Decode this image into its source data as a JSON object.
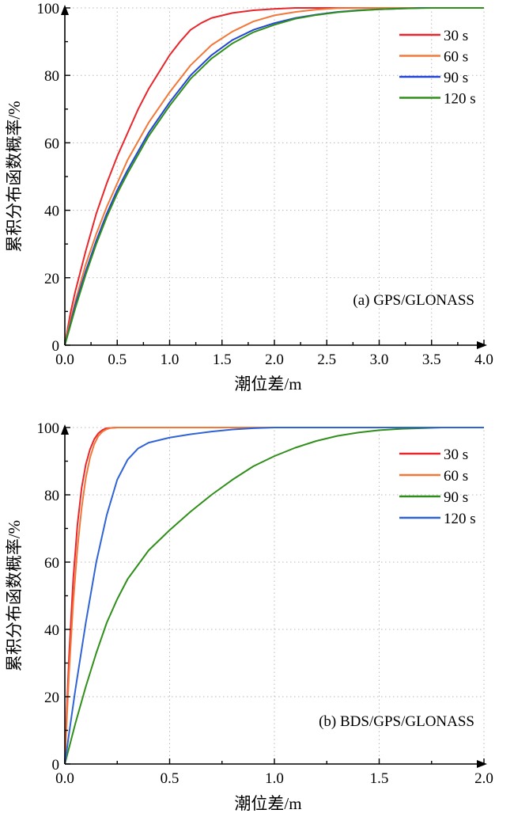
{
  "chart_data": [
    {
      "type": "line",
      "annotation": "(a) GPS/GLONASS",
      "xlabel": "潮位差/m",
      "ylabel": "累积分布函数概率/%",
      "xlim": [
        0,
        4.0
      ],
      "ylim": [
        0,
        100
      ],
      "xticks": [
        "0.0",
        "0.5",
        "1.0",
        "1.5",
        "2.0",
        "2.5",
        "3.0",
        "3.5",
        "4.0"
      ],
      "yticks": [
        "0",
        "20",
        "40",
        "60",
        "80",
        "100"
      ],
      "grid": true,
      "legend_position": "top-right",
      "series": [
        {
          "name": "30 s",
          "color": "#e8262b",
          "x": [
            0,
            0.05,
            0.1,
            0.2,
            0.3,
            0.4,
            0.5,
            0.6,
            0.7,
            0.8,
            0.9,
            1.0,
            1.1,
            1.2,
            1.3,
            1.4,
            1.6,
            1.8,
            2.0,
            2.2,
            2.4,
            4.0
          ],
          "y": [
            0,
            9,
            16,
            28,
            39,
            48,
            56,
            63,
            70,
            76,
            81,
            86,
            90,
            93.5,
            95.5,
            97,
            98.5,
            99.3,
            99.7,
            100,
            100,
            100
          ]
        },
        {
          "name": "60 s",
          "color": "#f2783a",
          "x": [
            0,
            0.05,
            0.1,
            0.2,
            0.3,
            0.4,
            0.5,
            0.6,
            0.8,
            1.0,
            1.2,
            1.4,
            1.6,
            1.8,
            2.0,
            2.2,
            2.4,
            2.6,
            3.0,
            4.0
          ],
          "y": [
            0,
            7,
            13,
            24,
            33,
            41,
            48,
            55,
            66,
            75,
            83,
            89,
            93,
            96,
            97.8,
            98.8,
            99.5,
            99.9,
            100,
            100
          ]
        },
        {
          "name": "90 s",
          "color": "#2446d6",
          "x": [
            0,
            0.05,
            0.1,
            0.2,
            0.3,
            0.4,
            0.5,
            0.6,
            0.8,
            1.0,
            1.2,
            1.4,
            1.6,
            1.8,
            2.0,
            2.2,
            2.4,
            2.6,
            2.8,
            3.0,
            3.2,
            3.4,
            4.0
          ],
          "y": [
            0,
            6,
            12,
            22,
            31,
            39,
            46,
            52,
            63,
            72,
            80,
            86,
            90.5,
            93.5,
            95.5,
            97,
            98,
            98.8,
            99.3,
            99.6,
            99.8,
            100,
            100
          ]
        },
        {
          "name": "120 s",
          "color": "#2f8f1a",
          "x": [
            0,
            0.05,
            0.1,
            0.2,
            0.3,
            0.4,
            0.5,
            0.6,
            0.8,
            1.0,
            1.2,
            1.4,
            1.6,
            1.8,
            2.0,
            2.2,
            2.4,
            2.6,
            2.8,
            3.0,
            3.2,
            3.5,
            4.0
          ],
          "y": [
            0,
            5.5,
            11,
            21,
            30,
            38,
            45,
            51,
            62,
            71,
            79,
            85,
            89.5,
            92.8,
            95,
            96.8,
            97.9,
            98.7,
            99.2,
            99.6,
            99.8,
            100,
            100
          ]
        }
      ]
    },
    {
      "type": "line",
      "annotation": "(b) BDS/GPS/GLONASS",
      "xlabel": "潮位差/m",
      "ylabel": "累积分布函数概率/%",
      "xlim": [
        0,
        2.0
      ],
      "ylim": [
        0,
        100
      ],
      "xticks": [
        "0.0",
        "0.5",
        "1.0",
        "1.5",
        "2.0"
      ],
      "yticks": [
        "0",
        "20",
        "40",
        "60",
        "80",
        "100"
      ],
      "grid": true,
      "legend_position": "top-right",
      "series": [
        {
          "name": "30 s",
          "color": "#e8262b",
          "x": [
            0,
            0.01,
            0.02,
            0.04,
            0.06,
            0.08,
            0.1,
            0.12,
            0.14,
            0.16,
            0.18,
            0.2,
            0.25,
            2.0
          ],
          "y": [
            0,
            17,
            32,
            55,
            71,
            82,
            89,
            93.5,
            96.5,
            98.3,
            99.3,
            99.8,
            100,
            100
          ]
        },
        {
          "name": "60 s",
          "color": "#f2783a",
          "x": [
            0,
            0.01,
            0.02,
            0.04,
            0.06,
            0.08,
            0.1,
            0.12,
            0.14,
            0.16,
            0.18,
            0.2,
            0.22,
            0.25,
            2.0
          ],
          "y": [
            0,
            14,
            27,
            48,
            64,
            76,
            85,
            91,
            95,
            97.5,
            98.8,
            99.5,
            99.9,
            100,
            100
          ]
        },
        {
          "name": "90 s",
          "color": "#2f8f1a",
          "x": [
            0,
            0.05,
            0.1,
            0.15,
            0.2,
            0.25,
            0.3,
            0.4,
            0.5,
            0.6,
            0.7,
            0.8,
            0.9,
            1.0,
            1.1,
            1.2,
            1.3,
            1.4,
            1.5,
            1.6,
            1.7,
            1.8,
            2.0
          ],
          "y": [
            0,
            12,
            23,
            33,
            42,
            49,
            55,
            63.5,
            69.5,
            75,
            80,
            84.5,
            88.5,
            91.5,
            94,
            96,
            97.5,
            98.5,
            99.2,
            99.6,
            99.8,
            100,
            100
          ]
        },
        {
          "name": "120 s",
          "color": "#2f63d6",
          "x": [
            0,
            0.02,
            0.05,
            0.1,
            0.15,
            0.2,
            0.25,
            0.3,
            0.35,
            0.4,
            0.5,
            0.6,
            0.7,
            0.8,
            0.9,
            1.0,
            1.2,
            2.0
          ],
          "y": [
            0,
            9,
            22,
            42,
            60,
            74,
            84.5,
            90.5,
            93.8,
            95.5,
            97,
            98,
            98.8,
            99.4,
            99.8,
            100,
            100,
            100
          ]
        }
      ]
    }
  ]
}
